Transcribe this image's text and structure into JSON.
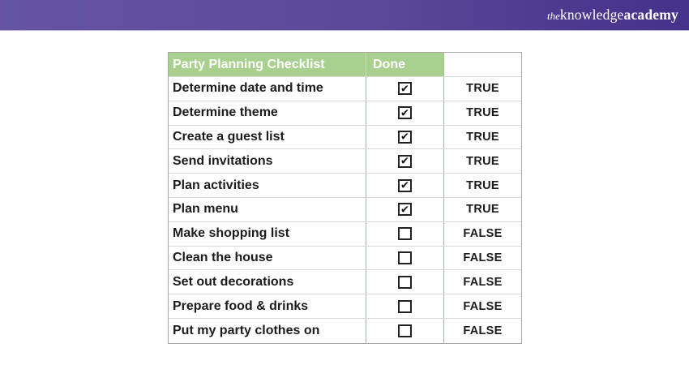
{
  "brand": {
    "prefix": "the",
    "name_regular": "knowledge",
    "name_bold": "academy"
  },
  "colors": {
    "bar_gradient_left": "#6554a4",
    "bar_gradient_right": "#443189",
    "header_green": "#a9d08e",
    "inner_border_green": "#9dc97e",
    "row_border_gray": "#d9d9d9",
    "outer_border_gray": "#a6a6a6",
    "header_text": "#ffffff",
    "body_text": "#1c1c1c"
  },
  "table": {
    "title_header": "Party Planning Checklist",
    "done_header": "Done",
    "status_header": "",
    "rows": [
      {
        "task": "Determine date and time",
        "checked": true,
        "status": "TRUE"
      },
      {
        "task": "Determine theme",
        "checked": true,
        "status": "TRUE"
      },
      {
        "task": "Create a guest list",
        "checked": true,
        "status": "TRUE"
      },
      {
        "task": "Send invitations",
        "checked": true,
        "status": "TRUE"
      },
      {
        "task": "Plan activities",
        "checked": true,
        "status": "TRUE"
      },
      {
        "task": "Plan menu",
        "checked": true,
        "status": "TRUE"
      },
      {
        "task": "Make shopping list",
        "checked": false,
        "status": "FALSE"
      },
      {
        "task": "Clean the house",
        "checked": false,
        "status": "FALSE"
      },
      {
        "task": "Set out decorations",
        "checked": false,
        "status": "FALSE"
      },
      {
        "task": "Prepare food & drinks",
        "checked": false,
        "status": "FALSE"
      },
      {
        "task": "Put my party clothes on",
        "checked": false,
        "status": "FALSE"
      }
    ],
    "checkbox_glyph": "✔"
  }
}
